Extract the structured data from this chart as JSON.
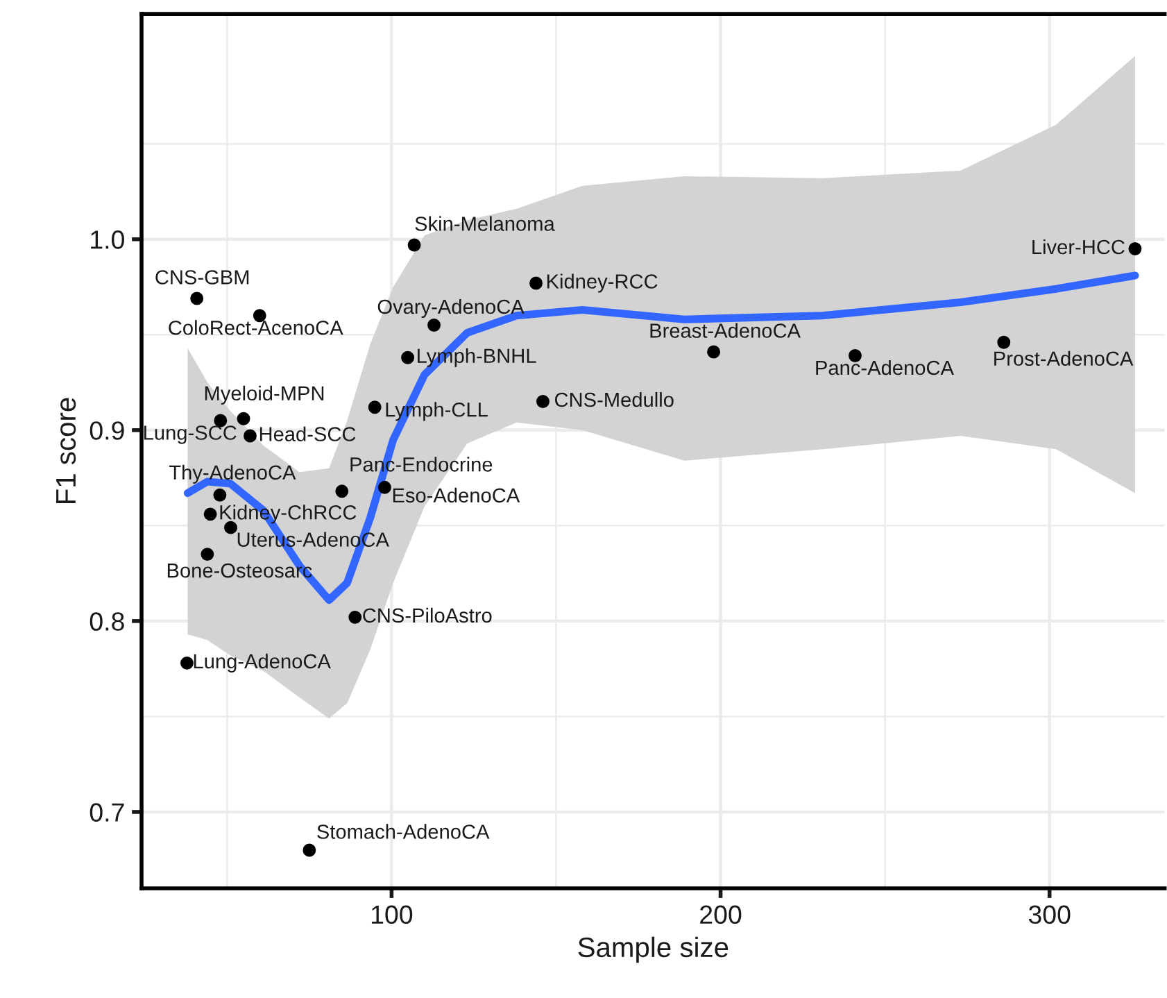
{
  "chart_data": {
    "type": "scatter",
    "xlabel": "Sample size",
    "ylabel": "F1 score",
    "xlim": [
      24,
      335
    ],
    "ylim": [
      0.66,
      1.118
    ],
    "xticks": [
      100,
      200,
      300
    ],
    "yticks": [
      {
        "value": 0.7,
        "label": "0.7"
      },
      {
        "value": 0.8,
        "label": "0.8"
      },
      {
        "value": 0.9,
        "label": "0.9"
      },
      {
        "value": 1.0,
        "label": "1.0"
      }
    ],
    "grid": true,
    "marker": "circle",
    "series": [
      {
        "color": "#000000",
        "x": [
          106.9,
          40.8,
          59.9,
          143.9,
          112.9,
          104.9,
          94.9,
          146.0,
          48.0,
          55.0,
          57.0,
          47.8,
          44.9,
          51.1,
          44.0,
          84.9,
          97.9,
          88.9,
          37.8,
          75.0,
          326.0,
          197.9,
          240.9,
          286.1
        ],
        "values": [
          0.997,
          0.969,
          0.96,
          0.977,
          0.955,
          0.938,
          0.912,
          0.915,
          0.905,
          0.906,
          0.897,
          0.866,
          0.856,
          0.849,
          0.835,
          0.868,
          0.87,
          0.802,
          0.778,
          0.68,
          0.995,
          0.941,
          0.939,
          0.946
        ],
        "value_labels": [
          "Skin-Melanoma",
          "CNS-GBM",
          "ColoRect-AcenoCA",
          "Kidney-RCC",
          "Ovary-AdenoCA",
          "Lymph-BNHL",
          "Lymph-CLL",
          "CNS-Medullo",
          "Lung-SCC",
          "Myeloid-MPN",
          "Head-SCC",
          "Thy-AdenoCA",
          "Kidney-ChRCC",
          "Uterus-AdenoCA",
          "Bone-Osteosarc",
          "Panc-Endocrine",
          "Eso-AdenoCA",
          "CNS-PiloAstro",
          "Lung-AdenoCA",
          "Stomach-AdenoCA",
          "Liver-HCC",
          "Breast-AdenoCA",
          "Panc-AdenoCA",
          "Prost-AdenoCA"
        ]
      },
      {
        "type": "line",
        "marker": "none",
        "color": "#3366ff",
        "x": [
          38,
          44,
          51,
          61,
          72,
          81,
          86.5,
          93.5,
          100.5,
          110,
          123,
          138,
          158,
          189,
          231,
          273,
          302,
          326
        ],
        "values": [
          0.867,
          0.873,
          0.872,
          0.858,
          0.829,
          0.811,
          0.82,
          0.854,
          0.895,
          0.929,
          0.951,
          0.96,
          0.963,
          0.958,
          0.96,
          0.967,
          0.974,
          0.981
        ],
        "upper": [
          0.943,
          0.925,
          0.91,
          0.892,
          0.878,
          0.88,
          0.905,
          0.945,
          0.975,
          1.002,
          1.01,
          1.016,
          1.028,
          1.033,
          1.032,
          1.036,
          1.06,
          1.096
        ],
        "lower": [
          0.793,
          0.79,
          0.782,
          0.774,
          0.76,
          0.749,
          0.757,
          0.785,
          0.82,
          0.86,
          0.893,
          0.904,
          0.9,
          0.884,
          0.89,
          0.897,
          0.89,
          0.867
        ]
      }
    ]
  }
}
